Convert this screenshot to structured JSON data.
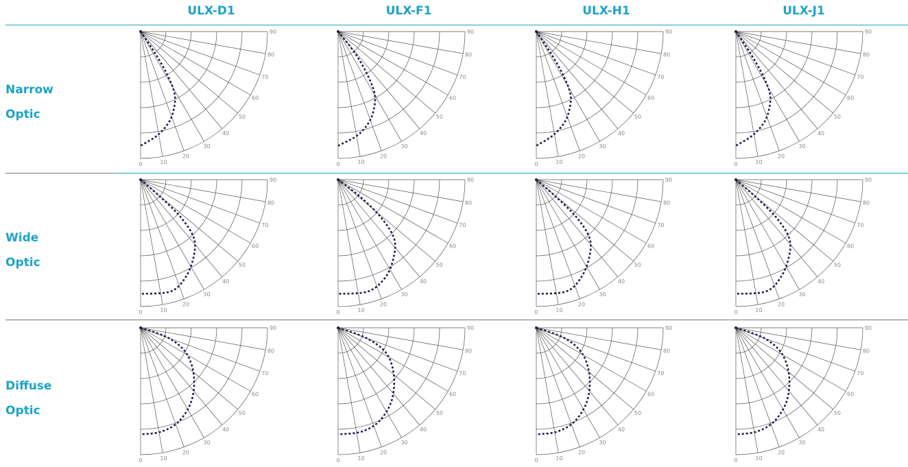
{
  "columns": [
    "ULX-D1",
    "ULX-F1",
    "ULX-H1",
    "ULX-J1"
  ],
  "rows": [
    {
      "line1": "Narrow",
      "line2": "Optic"
    },
    {
      "line1": "Wide",
      "line2": "Optic"
    },
    {
      "line1": "Diffuse",
      "line2": "Optic"
    }
  ],
  "colors": {
    "header": "#1ca3c7",
    "grid": "#555555",
    "curve": "#1b1f4a",
    "tick_text": "#8a8a8a",
    "rule_top": "#1ca3c7",
    "rule_between": "#777777"
  },
  "chart_data": {
    "type": "polar",
    "angle_axis": {
      "min": 0,
      "max": 90,
      "ticks": [
        0,
        10,
        20,
        30,
        40,
        50,
        60,
        70,
        80,
        90
      ]
    },
    "radial_rings": 5,
    "line_style": "dotted",
    "grid": true,
    "panels": [
      {
        "row": "Narrow Optic",
        "column": "ULX-D1",
        "curve": {
          "center": [
            0.46,
            0.17
          ],
          "scale": [
            1.0,
            1.0
          ],
          "max_x": 0.46
        }
      },
      {
        "row": "Narrow Optic",
        "column": "ULX-F1",
        "curve": {
          "center": [
            0.46,
            0.17
          ],
          "scale": [
            1.0,
            1.0
          ],
          "max_x": 0.47
        }
      },
      {
        "row": "Narrow Optic",
        "column": "ULX-H1",
        "curve": {
          "center": [
            0.46,
            0.17
          ],
          "scale": [
            1.0,
            1.0
          ],
          "max_x": 0.46
        }
      },
      {
        "row": "Narrow Optic",
        "column": "ULX-J1",
        "curve": {
          "center": [
            0.46,
            0.17
          ],
          "scale": [
            1.0,
            1.0
          ],
          "max_x": 0.46
        }
      },
      {
        "row": "Wide Optic",
        "column": "ULX-D1",
        "curve": {
          "max_x": 0.72,
          "bottom": 0.09
        }
      },
      {
        "row": "Wide Optic",
        "column": "ULX-F1",
        "curve": {
          "max_x": 0.72,
          "bottom": 0.09
        }
      },
      {
        "row": "Wide Optic",
        "column": "ULX-H1",
        "curve": {
          "max_x": 0.72,
          "bottom": 0.09
        }
      },
      {
        "row": "Wide Optic",
        "column": "ULX-J1",
        "curve": {
          "max_x": 0.72,
          "bottom": 0.09
        }
      },
      {
        "row": "Diffuse Optic",
        "column": "ULX-D1",
        "curve": {
          "max_x": 0.72,
          "bottom": 0.23
        }
      },
      {
        "row": "Diffuse Optic",
        "column": "ULX-F1",
        "curve": {
          "max_x": 0.72,
          "bottom": 0.23
        }
      },
      {
        "row": "Diffuse Optic",
        "column": "ULX-H1",
        "curve": {
          "max_x": 0.72,
          "bottom": 0.23
        }
      },
      {
        "row": "Diffuse Optic",
        "column": "ULX-J1",
        "curve": {
          "max_x": 0.72,
          "bottom": 0.23
        }
      }
    ]
  }
}
